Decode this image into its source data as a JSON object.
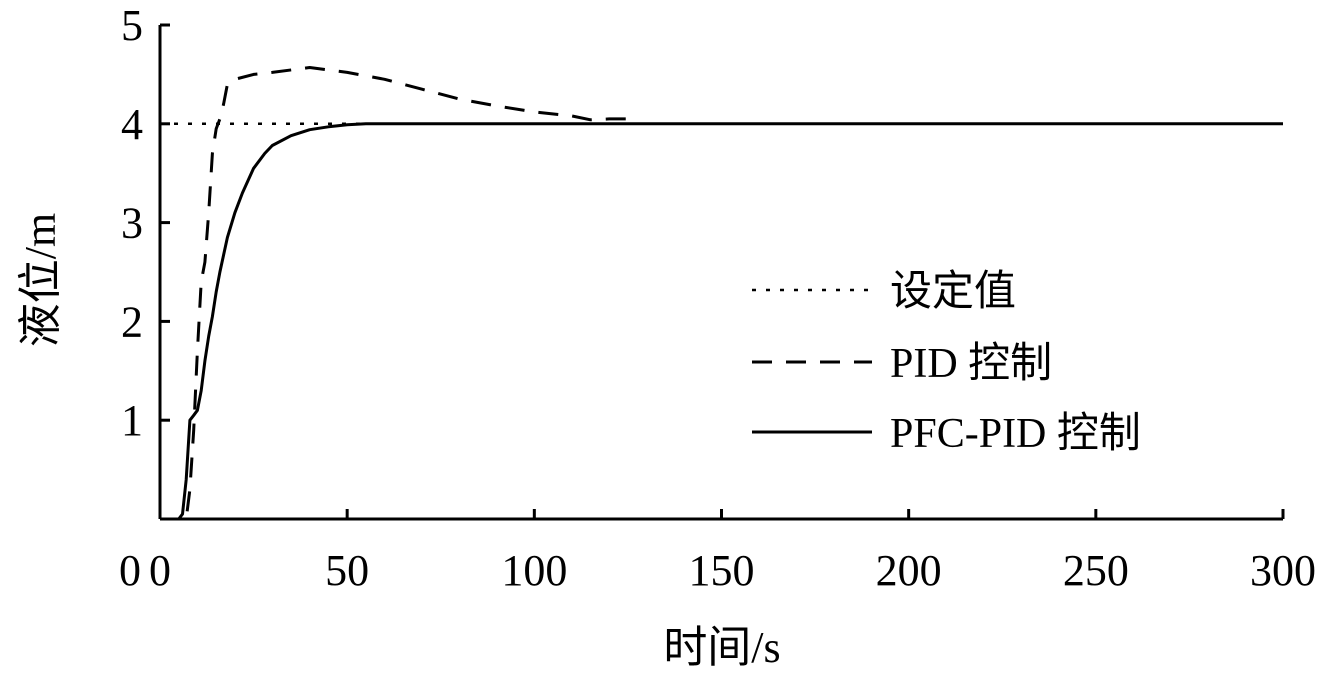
{
  "chart_data": {
    "type": "line",
    "title": "",
    "xlabel": "时间/s",
    "ylabel": "液位/m",
    "xlim": [
      0,
      300
    ],
    "ylim": [
      0,
      5
    ],
    "xticks": [
      0,
      50,
      100,
      150,
      200,
      250,
      300
    ],
    "yticks": [
      1,
      2,
      3,
      4,
      5
    ],
    "grid": false,
    "legend_position": "right",
    "series": [
      {
        "name": "设定值",
        "style": "dotted",
        "color": "#000000",
        "x": [
          0,
          55
        ],
        "y": [
          4.0,
          4.0
        ]
      },
      {
        "name": "PID 控制",
        "style": "dashed",
        "color": "#000000",
        "x": [
          0,
          7,
          8,
          9,
          10,
          11,
          12,
          13,
          14,
          15,
          16,
          17,
          18,
          20,
          25,
          30,
          40,
          50,
          60,
          70,
          80,
          90,
          100,
          110,
          115,
          120,
          127
        ],
        "y": [
          0,
          0,
          0.3,
          0.9,
          1.7,
          2.4,
          2.6,
          3.1,
          3.7,
          3.95,
          4.05,
          4.2,
          4.4,
          4.45,
          4.5,
          4.52,
          4.57,
          4.52,
          4.45,
          4.35,
          4.25,
          4.18,
          4.12,
          4.08,
          4.04,
          4.05,
          4.05
        ]
      },
      {
        "name": "PFC-PID 控制",
        "style": "solid",
        "color": "#000000",
        "x": [
          0,
          5,
          6,
          7,
          8,
          9,
          10,
          11,
          12,
          13,
          14,
          15,
          16,
          18,
          20,
          22,
          25,
          28,
          30,
          35,
          40,
          45,
          50,
          55,
          60,
          100,
          150,
          200,
          250,
          300
        ],
        "y": [
          0,
          0,
          0.05,
          0.4,
          1.0,
          1.05,
          1.1,
          1.3,
          1.6,
          1.85,
          2.05,
          2.3,
          2.5,
          2.85,
          3.1,
          3.3,
          3.55,
          3.7,
          3.78,
          3.88,
          3.94,
          3.97,
          3.99,
          4.0,
          4.0,
          4.0,
          4.0,
          4.0,
          4.0,
          4.0
        ]
      }
    ]
  }
}
